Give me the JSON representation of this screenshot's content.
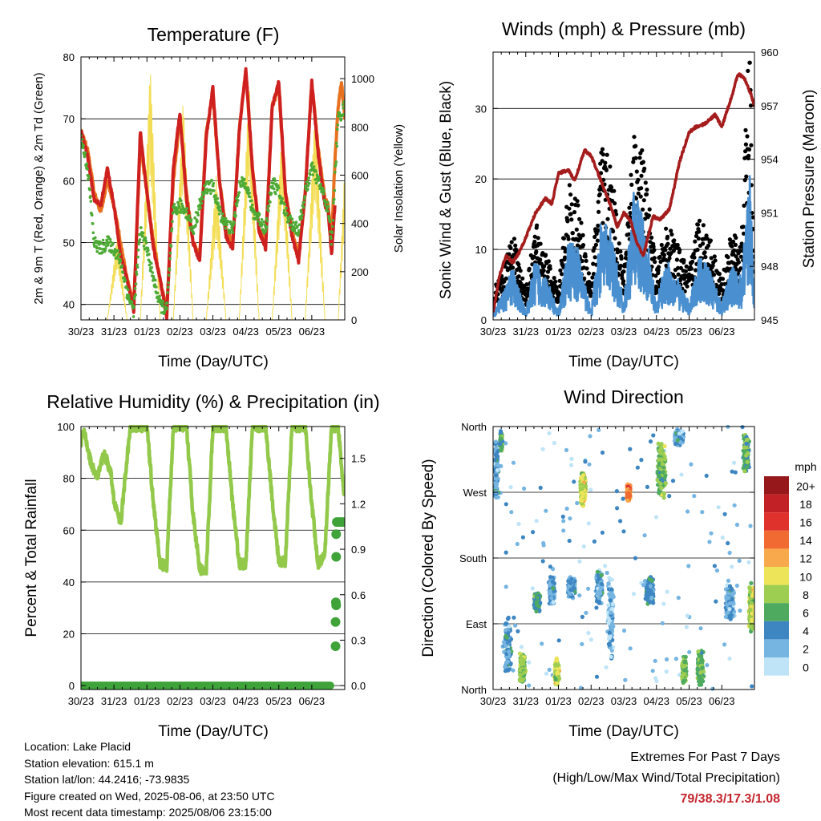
{
  "chart_data": [
    {
      "type": "line",
      "title": "Temperature (F)",
      "xlabel": "Time (Day/UTC)",
      "ylabel": "2m & 9m T (Red, Orange) & 2m Td (Green)",
      "y2label": "Solar Insolation (Yellow)",
      "x_ticks": [
        "30/23",
        "31/23",
        "01/23",
        "02/23",
        "03/23",
        "04/23",
        "05/23",
        "06/23"
      ],
      "ylim": [
        37.5,
        80
      ],
      "y_ticks": [
        40,
        50,
        60,
        70,
        80
      ],
      "y2lim": [
        0,
        1090
      ],
      "y2_ticks": [
        0,
        200,
        400,
        600,
        800,
        1000
      ],
      "grid": "horizontal",
      "series": [
        {
          "color": "#e8711f",
          "days": [
            0,
            0.2,
            0.4,
            0.6,
            0.8,
            1,
            1.2,
            1.4,
            1.6,
            1.8,
            2,
            2.2,
            2.4,
            2.6,
            2.8,
            3,
            3.2,
            3.4,
            3.6,
            3.8,
            4,
            4.2,
            4.4,
            4.6,
            4.8,
            5,
            5.2,
            5.4,
            5.6,
            5.8,
            6,
            6.2,
            6.4,
            6.6,
            6.8,
            7,
            7.2,
            7.4,
            7.5,
            7.6,
            7.7,
            7.8,
            7.9,
            8
          ],
          "values": [
            68,
            65,
            58,
            55,
            60,
            56,
            50,
            44,
            40,
            66,
            58,
            50,
            44,
            39,
            60,
            70,
            58,
            50,
            48,
            68,
            74,
            60,
            52,
            50,
            68,
            78,
            62,
            52,
            50,
            72,
            75,
            58,
            52,
            48,
            58,
            76,
            65,
            57,
            56,
            50,
            63,
            72,
            76,
            70
          ]
        },
        {
          "color": "#cf2020",
          "days": [
            0,
            0.2,
            0.4,
            0.6,
            0.8,
            1,
            1.2,
            1.4,
            1.6,
            1.8,
            2,
            2.2,
            2.4,
            2.6,
            2.8,
            3,
            3.2,
            3.4,
            3.6,
            3.8,
            4,
            4.2,
            4.4,
            4.6,
            4.8,
            5,
            5.2,
            5.4,
            5.6,
            5.8,
            6,
            6.2,
            6.4,
            6.6,
            6.8,
            7,
            7.2,
            7.4,
            7.5,
            7.6,
            7.7
          ],
          "values": [
            68,
            64,
            57,
            56,
            62,
            56,
            48,
            44,
            39,
            68,
            58,
            49,
            44,
            38,
            62,
            71,
            57,
            50,
            47,
            67,
            75,
            60,
            51,
            49,
            68,
            78,
            62,
            52,
            49,
            72,
            76,
            58,
            51,
            47,
            58,
            76,
            64,
            56,
            55,
            48,
            56
          ]
        },
        {
          "color": "#4daa35",
          "days": [
            0,
            0.2,
            0.3,
            0.4,
            0.6,
            0.8,
            1,
            1.2,
            1.4,
            1.6,
            1.8,
            2,
            2.2,
            2.4,
            2.6,
            2.8,
            3,
            3.2,
            3.4,
            3.6,
            3.8,
            4,
            4.2,
            4.4,
            4.6,
            4.8,
            5,
            5.2,
            5.4,
            5.6,
            5.8,
            6,
            6.2,
            6.4,
            6.6,
            6.8,
            7,
            7.2,
            7.4,
            7.5,
            7.6,
            7.7,
            7.8,
            8
          ],
          "values": [
            67,
            62,
            56,
            50,
            49,
            50,
            49,
            47,
            42,
            39,
            52,
            49,
            44,
            40,
            39,
            55,
            56,
            55,
            52,
            56,
            59,
            59,
            55,
            53,
            52,
            59,
            60,
            55,
            54,
            52,
            60,
            58,
            55,
            53,
            52,
            58,
            62,
            60,
            57,
            55,
            50,
            60,
            70,
            72
          ]
        },
        {
          "color": "#f3dd55",
          "name": "",
          "days": [
            0.8,
            1.1,
            1.4,
            1.8,
            2.1,
            2.4,
            2.8,
            3.1,
            3.4,
            3.8,
            4.1,
            4.4,
            4.8,
            5.1,
            5.4,
            5.8,
            6.1,
            6.4,
            6.8,
            7.1,
            7.4,
            7.8,
            8
          ],
          "values": [
            0,
            350,
            0,
            0,
            1060,
            0,
            0,
            920,
            0,
            0,
            600,
            0,
            0,
            1000,
            0,
            0,
            820,
            0,
            0,
            880,
            0,
            0,
            650
          ]
        }
      ]
    },
    {
      "type": "line",
      "title": "Winds (mph) & Pressure (mb)",
      "xlabel": "Time (Day/UTC)",
      "ylabel": "Sonic Wind & Gust (Blue, Black)",
      "y2label": "Station Pressure (Maroon)",
      "x_ticks": [
        "30/23",
        "31/23",
        "01/23",
        "02/23",
        "03/23",
        "04/23",
        "05/23",
        "06/23"
      ],
      "ylim": [
        0,
        38
      ],
      "y_ticks": [
        0,
        10,
        20,
        30
      ],
      "y2lim": [
        945,
        960
      ],
      "y2_ticks": [
        945,
        948,
        951,
        954,
        957,
        960
      ],
      "grid": "horizontal",
      "series": [
        {
          "name": "",
          "color": "#000000",
          "days": [
            0,
            0.3,
            0.6,
            1,
            1.3,
            1.6,
            2,
            2.3,
            2.6,
            3,
            3.3,
            3.6,
            4,
            4.3,
            4.6,
            5,
            5.3,
            5.6,
            6,
            6.3,
            6.6,
            7,
            7.3,
            7.6,
            7.85,
            8
          ],
          "values": [
            3,
            5,
            9,
            3,
            10,
            7,
            3,
            14,
            12,
            4,
            18,
            16,
            5,
            20,
            17,
            5,
            10,
            8,
            5,
            11,
            9,
            4,
            9,
            8,
            30,
            5
          ]
        },
        {
          "name": "",
          "color": "#4a8fcf",
          "days": [
            0,
            0.3,
            0.6,
            1,
            1.3,
            1.6,
            2,
            2.3,
            2.6,
            3,
            3.3,
            3.6,
            4,
            4.3,
            4.6,
            5,
            5.3,
            5.6,
            6,
            6.3,
            6.6,
            7,
            7.3,
            7.6,
            7.85,
            8
          ],
          "values": [
            1,
            3,
            6,
            1,
            7,
            5,
            1,
            9,
            8,
            1,
            11,
            10,
            2,
            14,
            12,
            2,
            7,
            5,
            2,
            7,
            6,
            2,
            6,
            5,
            17,
            2
          ]
        },
        {
          "name": "",
          "color": "#a51c1c",
          "y_axis": "right",
          "days": [
            0,
            0.2,
            0.4,
            0.6,
            0.8,
            1,
            1.3,
            1.6,
            1.8,
            2,
            2.3,
            2.5,
            2.8,
            3,
            3.3,
            3.6,
            3.8,
            4,
            4.2,
            4.4,
            4.6,
            4.9,
            5.1,
            5.4,
            5.7,
            6,
            6.2,
            6.5,
            6.8,
            7,
            7.3,
            7.5,
            7.7,
            7.9,
            8
          ],
          "values": [
            945.4,
            947.5,
            948.6,
            948.2,
            948.8,
            949.6,
            951,
            951.8,
            951.5,
            953.2,
            953.4,
            952.8,
            954.5,
            954.2,
            952.8,
            951.4,
            950.2,
            951,
            950.6,
            949.3,
            948.6,
            950.8,
            950.6,
            951.2,
            953.8,
            955.5,
            955.8,
            956,
            956.5,
            955.8,
            957.5,
            958.8,
            958.5,
            957.6,
            957
          ]
        }
      ]
    },
    {
      "type": "line",
      "title": "Relative Humidity (%) & Precipitation (in)",
      "xlabel": "Time (Day/UTC)",
      "ylabel": "Percent & Total Rainfall",
      "x_ticks": [
        "30/23",
        "31/23",
        "01/23",
        "02/23",
        "03/23",
        "04/23",
        "05/23",
        "06/23"
      ],
      "ylim": [
        -1.5,
        100
      ],
      "y_ticks": [
        0,
        20,
        40,
        60,
        80,
        100
      ],
      "y2lim": [
        -0.0257,
        1.71
      ],
      "y2_ticks": [
        "0.0",
        "0.3",
        "0.6",
        "0.9",
        "1.2",
        "1.5"
      ],
      "grid": "horizontal",
      "series": [
        {
          "name": "",
          "color": "#92c94a",
          "days": [
            0,
            0.1,
            0.3,
            0.5,
            0.7,
            0.9,
            1,
            1.2,
            1.4,
            1.5,
            1.8,
            2.0,
            2.2,
            2.4,
            2.6,
            2.8,
            3.0,
            3.2,
            3.4,
            3.6,
            3.8,
            4.0,
            4.2,
            4.4,
            4.6,
            4.8,
            5,
            5.2,
            5.4,
            5.6,
            5.8,
            6,
            6.2,
            6.4,
            6.6,
            6.8,
            7,
            7.2,
            7.4,
            7.6,
            7.8,
            7.9,
            8
          ],
          "values": [
            94,
            98,
            86,
            80,
            90,
            82,
            72,
            62,
            88,
            100,
            100,
            100,
            70,
            47,
            46,
            100,
            100,
            100,
            66,
            45,
            44,
            100,
            100,
            100,
            70,
            47,
            47,
            100,
            100,
            100,
            72,
            48,
            48,
            100,
            100,
            100,
            70,
            46,
            52,
            100,
            100,
            85,
            72
          ]
        },
        {
          "name": "",
          "color": "#3fa33a",
          "y_axis": "right",
          "days": [
            0,
            1,
            2,
            3,
            4,
            5,
            6,
            7,
            7.6,
            7.63,
            7.66,
            7.69,
            7.72,
            7.75,
            7.8,
            7.9,
            8
          ],
          "values": [
            0,
            0,
            0,
            0,
            0,
            0,
            0,
            0,
            0,
            0.26,
            0.42,
            0.55,
            0.85,
            1.0,
            1.08,
            1.08,
            1.08
          ]
        }
      ]
    },
    {
      "type": "scatter",
      "title": "Wind Direction",
      "xlabel": "Time (Day/UTC)",
      "ylabel": "Direction (Colored By Speed)",
      "x_ticks": [
        "30/23",
        "31/23",
        "01/23",
        "02/23",
        "03/23",
        "04/23",
        "05/23",
        "06/23"
      ],
      "y_ticks": [
        "North",
        "East",
        "South",
        "West",
        "North"
      ],
      "ylim": [
        0,
        360
      ],
      "grid": "horizontal",
      "colorbar": {
        "title": "mph",
        "labels": [
          "20+",
          "18",
          "16",
          "14",
          "12",
          "10",
          "8",
          "6",
          "4",
          "2",
          "0"
        ],
        "colors": [
          "#96181b",
          "#c22226",
          "#e0322c",
          "#f06a31",
          "#f8a94c",
          "#ede45a",
          "#9dce52",
          "#4eaa5f",
          "#3d86c2",
          "#76b5e1",
          "#bfe4f7"
        ]
      },
      "clusters": [
        {
          "day": 0.1,
          "dir": 300,
          "spread_day": 0.08,
          "spread_dir": 45,
          "speed": 3,
          "n": 30
        },
        {
          "day": 0.25,
          "dir": 340,
          "spread_day": 0.05,
          "spread_dir": 15,
          "speed": 6,
          "n": 15
        },
        {
          "day": 0.45,
          "dir": 60,
          "spread_day": 0.12,
          "spread_dir": 40,
          "speed": 3,
          "n": 40
        },
        {
          "day": 0.9,
          "dir": 30,
          "spread_day": 0.1,
          "spread_dir": 20,
          "speed": 8,
          "n": 45
        },
        {
          "day": 1.35,
          "dir": 120,
          "spread_day": 0.1,
          "spread_dir": 15,
          "speed": 5,
          "n": 40
        },
        {
          "day": 1.8,
          "dir": 135,
          "spread_day": 0.1,
          "spread_dir": 20,
          "speed": 3,
          "n": 35
        },
        {
          "day": 1.95,
          "dir": 25,
          "spread_day": 0.08,
          "spread_dir": 20,
          "speed": 9,
          "n": 45
        },
        {
          "day": 2.4,
          "dir": 140,
          "spread_day": 0.12,
          "spread_dir": 15,
          "speed": 3,
          "n": 45
        },
        {
          "day": 2.75,
          "dir": 275,
          "spread_day": 0.09,
          "spread_dir": 25,
          "speed": 9,
          "n": 80
        },
        {
          "day": 3.25,
          "dir": 140,
          "spread_day": 0.1,
          "spread_dir": 25,
          "speed": 3,
          "n": 45
        },
        {
          "day": 3.6,
          "dir": 100,
          "spread_day": 0.1,
          "spread_dir": 60,
          "speed": 2,
          "n": 40
        },
        {
          "day": 4.15,
          "dir": 270,
          "spread_day": 0.06,
          "spread_dir": 12,
          "speed": 13,
          "n": 90
        },
        {
          "day": 4.8,
          "dir": 135,
          "spread_day": 0.12,
          "spread_dir": 20,
          "speed": 4,
          "n": 45
        },
        {
          "day": 5.15,
          "dir": 300,
          "spread_day": 0.14,
          "spread_dir": 40,
          "speed": 7,
          "n": 60
        },
        {
          "day": 5.7,
          "dir": 345,
          "spread_day": 0.15,
          "spread_dir": 12,
          "speed": 3,
          "n": 40
        },
        {
          "day": 5.85,
          "dir": 25,
          "spread_day": 0.07,
          "spread_dir": 20,
          "speed": 7,
          "n": 55
        },
        {
          "day": 6.35,
          "dir": 30,
          "spread_day": 0.1,
          "spread_dir": 25,
          "speed": 6,
          "n": 60
        },
        {
          "day": 7.25,
          "dir": 120,
          "spread_day": 0.15,
          "spread_dir": 25,
          "speed": 3,
          "n": 45
        },
        {
          "day": 7.75,
          "dir": 320,
          "spread_day": 0.1,
          "spread_dir": 30,
          "speed": 6,
          "n": 40
        },
        {
          "day": 7.9,
          "dir": 110,
          "spread_day": 0.08,
          "spread_dir": 40,
          "speed": 9,
          "n": 40
        }
      ]
    }
  ],
  "station_info": [
    "Location: Lake Placid",
    "Station elevation: 615.1 m",
    "Station lat/lon: 44.2416; -73.9835",
    "Figure created on Wed, 2025-08-06, at 23:50 UTC",
    "Most recent data timestamp: 2025/08/06 23:15:00"
  ],
  "extremes": {
    "title": "Extremes For Past 7 Days",
    "subtitle": "(High/Low/Max Wind/Total Precipitation)",
    "values": "79/38.3/17.3/1.08",
    "color": "#c4242c"
  }
}
